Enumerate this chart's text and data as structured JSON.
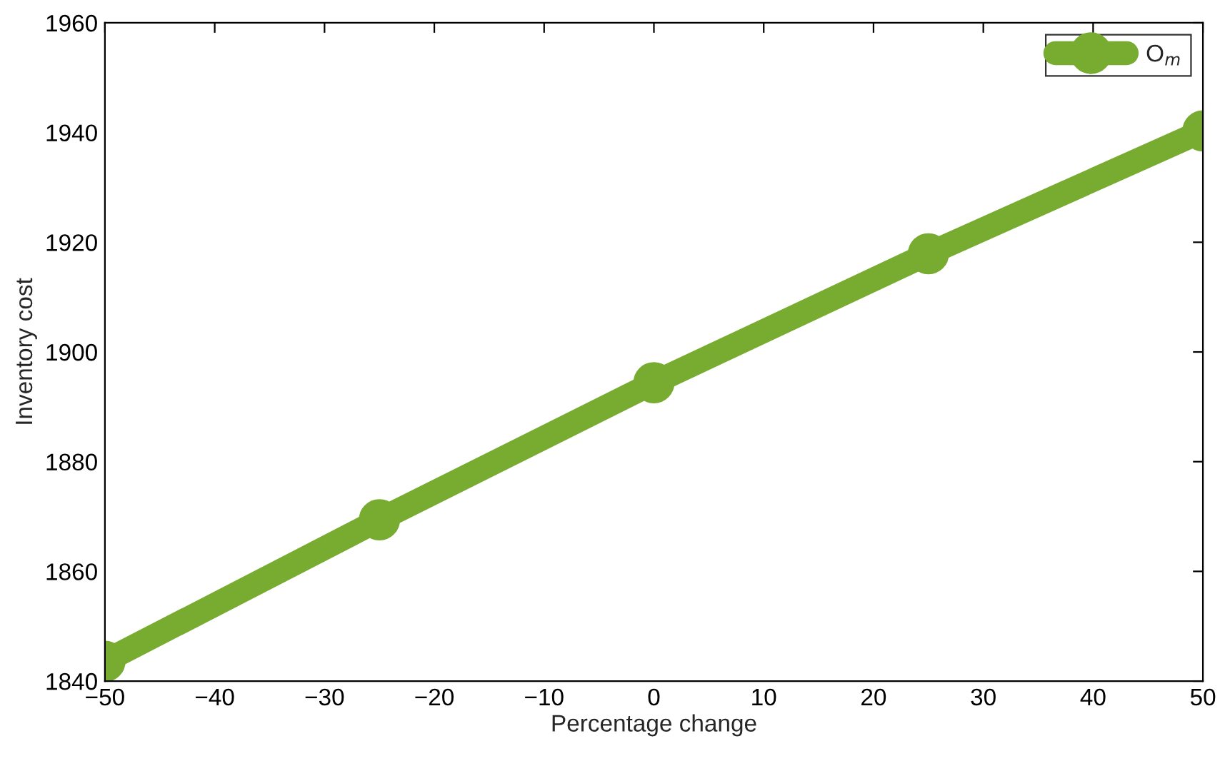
{
  "chart_data": {
    "type": "line",
    "xlabel": "Percentage change",
    "ylabel": "Inventory cost",
    "x": [
      -50,
      -25,
      0,
      25,
      50
    ],
    "series": [
      {
        "name": "O$_{m}$",
        "color": "#77ac30",
        "values": [
          1843.6,
          1869.4,
          1894.4,
          1917.9,
          1940.3
        ]
      }
    ],
    "xlim": [
      -50,
      50
    ],
    "xticks": [
      -50,
      -40,
      -30,
      -20,
      -10,
      0,
      10,
      20,
      30,
      40,
      50
    ],
    "ylim": [
      1840,
      1960
    ],
    "yticks": [
      1840,
      1860,
      1880,
      1900,
      1920,
      1940,
      1960
    ],
    "grid": false,
    "legend": "top right",
    "marker": "circle",
    "line_style": "solid"
  }
}
